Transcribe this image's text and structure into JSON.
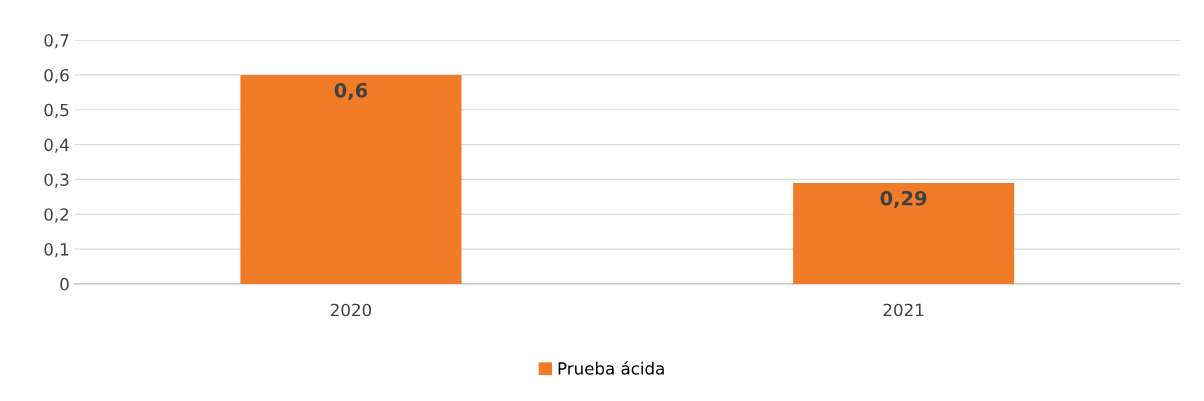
{
  "chart_data": {
    "type": "bar",
    "categories": [
      "2020",
      "2021"
    ],
    "series": [
      {
        "name": "Prueba ácida",
        "color": "#f07c28",
        "values": [
          0.6,
          0.29
        ],
        "value_labels": [
          "0,6",
          "0,29"
        ]
      }
    ],
    "ylim": [
      0,
      0.7
    ],
    "yticks": [
      {
        "value": 0,
        "label": "0"
      },
      {
        "value": 0.1,
        "label": "0,1"
      },
      {
        "value": 0.2,
        "label": "0,2"
      },
      {
        "value": 0.3,
        "label": "0,3"
      },
      {
        "value": 0.4,
        "label": "0,4"
      },
      {
        "value": 0.5,
        "label": "0,5"
      },
      {
        "value": 0.6,
        "label": "0,6"
      },
      {
        "value": 0.7,
        "label": "0,7"
      }
    ],
    "grid": "y",
    "legend": "bottom"
  }
}
